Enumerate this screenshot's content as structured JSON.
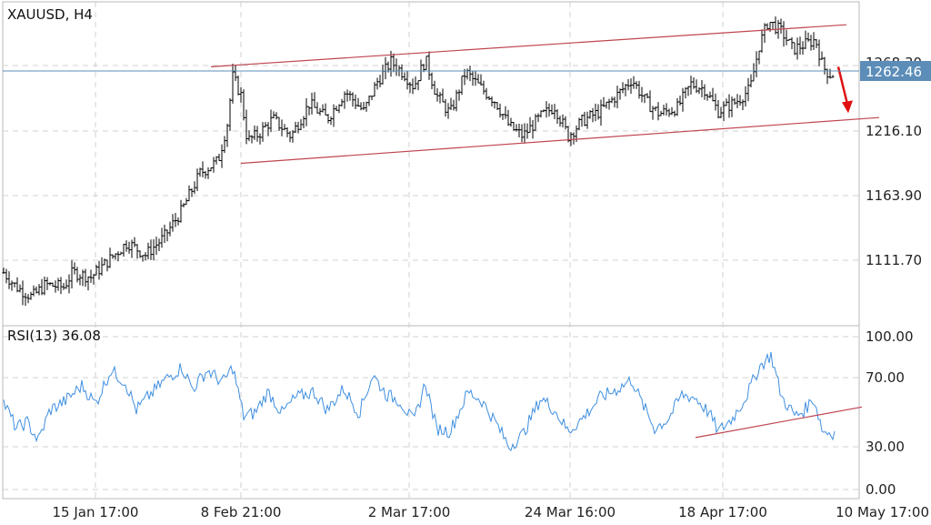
{
  "colors": {
    "background": "#ffffff",
    "grid": "#d0d0d0",
    "candle": "#000000",
    "price_line": "#5b8db8",
    "price_badge": "#5b8db8",
    "rsi_line": "#3f8fe0",
    "channel_line": "#c0454f",
    "arrow": "#e01010"
  },
  "price_panel": {
    "title": "XAUUSD, H4",
    "current_price_label": "1262.46",
    "partial_label": "1268.30"
  },
  "rsi_panel": {
    "title": "RSI(13) 36.08"
  },
  "chart_data": [
    {
      "type": "candlestick",
      "title": "XAUUSD, H4",
      "symbol": "XAUUSD",
      "timeframe": "H4",
      "y_ticks": [
        "1216.10",
        "1163.90",
        "1111.70"
      ],
      "ylim": [
        1062,
        1312
      ],
      "current_price": 1262.46,
      "x_ticks": [
        "15 Jan 17:00",
        "8 Feb 21:00",
        "2 Mar 17:00",
        "24 Mar 16:00",
        "18 Apr 17:00",
        "10 May 17:00"
      ],
      "series_path": [
        [
          0,
          1105
        ],
        [
          18,
          1090
        ],
        [
          35,
          1082
        ],
        [
          50,
          1092
        ],
        [
          70,
          1090
        ],
        [
          80,
          1102
        ],
        [
          100,
          1098
        ],
        [
          120,
          1112
        ],
        [
          140,
          1126
        ],
        [
          160,
          1116
        ],
        [
          180,
          1130
        ],
        [
          200,
          1152
        ],
        [
          220,
          1182
        ],
        [
          240,
          1192
        ],
        [
          250,
          1222
        ],
        [
          256,
          1260
        ],
        [
          265,
          1245
        ],
        [
          272,
          1208
        ],
        [
          285,
          1214
        ],
        [
          300,
          1226
        ],
        [
          320,
          1212
        ],
        [
          340,
          1238
        ],
        [
          360,
          1226
        ],
        [
          380,
          1248
        ],
        [
          400,
          1232
        ],
        [
          415,
          1256
        ],
        [
          430,
          1272
        ],
        [
          445,
          1262
        ],
        [
          455,
          1252
        ],
        [
          468,
          1274
        ],
        [
          480,
          1245
        ],
        [
          495,
          1230
        ],
        [
          512,
          1264
        ],
        [
          530,
          1250
        ],
        [
          545,
          1240
        ],
        [
          560,
          1220
        ],
        [
          575,
          1212
        ],
        [
          595,
          1228
        ],
        [
          610,
          1236
        ],
        [
          625,
          1212
        ],
        [
          640,
          1224
        ],
        [
          660,
          1232
        ],
        [
          680,
          1246
        ],
        [
          695,
          1258
        ],
        [
          710,
          1240
        ],
        [
          725,
          1230
        ],
        [
          745,
          1235
        ],
        [
          760,
          1254
        ],
        [
          775,
          1250
        ],
        [
          790,
          1232
        ],
        [
          810,
          1240
        ],
        [
          825,
          1250
        ],
        [
          835,
          1285
        ],
        [
          845,
          1305
        ],
        [
          860,
          1296
        ],
        [
          872,
          1282
        ],
        [
          885,
          1286
        ],
        [
          897,
          1290
        ],
        [
          905,
          1268
        ],
        [
          912,
          1262
        ],
        [
          918,
          1262
        ]
      ],
      "channel_upper": [
        [
          232,
          1268
        ],
        [
          931,
          1302
        ]
      ],
      "channel_lower": [
        [
          265,
          1190
        ],
        [
          967,
          1227
        ]
      ],
      "arrow": [
        [
          922,
          1268
        ],
        [
          932,
          1232
        ]
      ]
    },
    {
      "type": "line",
      "title": "RSI(13) 36.08",
      "series": [
        {
          "name": "RSI(13)",
          "last_value": 36.08
        }
      ],
      "y_ticks": [
        "100.00",
        "70.00",
        "30.00",
        "0.00"
      ],
      "ylim": [
        0,
        100
      ],
      "x_ticks": [
        "15 Jan 17:00",
        "8 Feb 21:00",
        "2 Mar 17:00",
        "24 Mar 16:00",
        "18 Apr 17:00",
        "10 May 17:00"
      ],
      "series_path": [
        [
          0,
          62
        ],
        [
          18,
          40
        ],
        [
          30,
          44
        ],
        [
          42,
          32
        ],
        [
          55,
          52
        ],
        [
          72,
          58
        ],
        [
          90,
          68
        ],
        [
          105,
          56
        ],
        [
          122,
          78
        ],
        [
          138,
          70
        ],
        [
          150,
          52
        ],
        [
          165,
          62
        ],
        [
          182,
          72
        ],
        [
          200,
          80
        ],
        [
          212,
          66
        ],
        [
          228,
          78
        ],
        [
          245,
          70
        ],
        [
          256,
          80
        ],
        [
          268,
          48
        ],
        [
          280,
          50
        ],
        [
          295,
          64
        ],
        [
          310,
          50
        ],
        [
          325,
          60
        ],
        [
          345,
          64
        ],
        [
          360,
          52
        ],
        [
          378,
          66
        ],
        [
          395,
          50
        ],
        [
          410,
          75
        ],
        [
          425,
          62
        ],
        [
          440,
          58
        ],
        [
          455,
          44
        ],
        [
          468,
          70
        ],
        [
          480,
          40
        ],
        [
          495,
          38
        ],
        [
          515,
          64
        ],
        [
          530,
          58
        ],
        [
          545,
          44
        ],
        [
          560,
          28
        ],
        [
          575,
          36
        ],
        [
          595,
          60
        ],
        [
          610,
          52
        ],
        [
          625,
          38
        ],
        [
          640,
          46
        ],
        [
          660,
          60
        ],
        [
          680,
          66
        ],
        [
          695,
          72
        ],
        [
          705,
          58
        ],
        [
          720,
          40
        ],
        [
          735,
          46
        ],
        [
          750,
          62
        ],
        [
          765,
          60
        ],
        [
          780,
          50
        ],
        [
          790,
          38
        ],
        [
          805,
          46
        ],
        [
          820,
          60
        ],
        [
          835,
          80
        ],
        [
          848,
          88
        ],
        [
          860,
          60
        ],
        [
          875,
          48
        ],
        [
          885,
          52
        ],
        [
          895,
          60
        ],
        [
          905,
          38
        ],
        [
          918,
          37
        ]
      ],
      "trend_line": [
        [
          765,
          34
        ],
        [
          948,
          54
        ]
      ]
    }
  ]
}
